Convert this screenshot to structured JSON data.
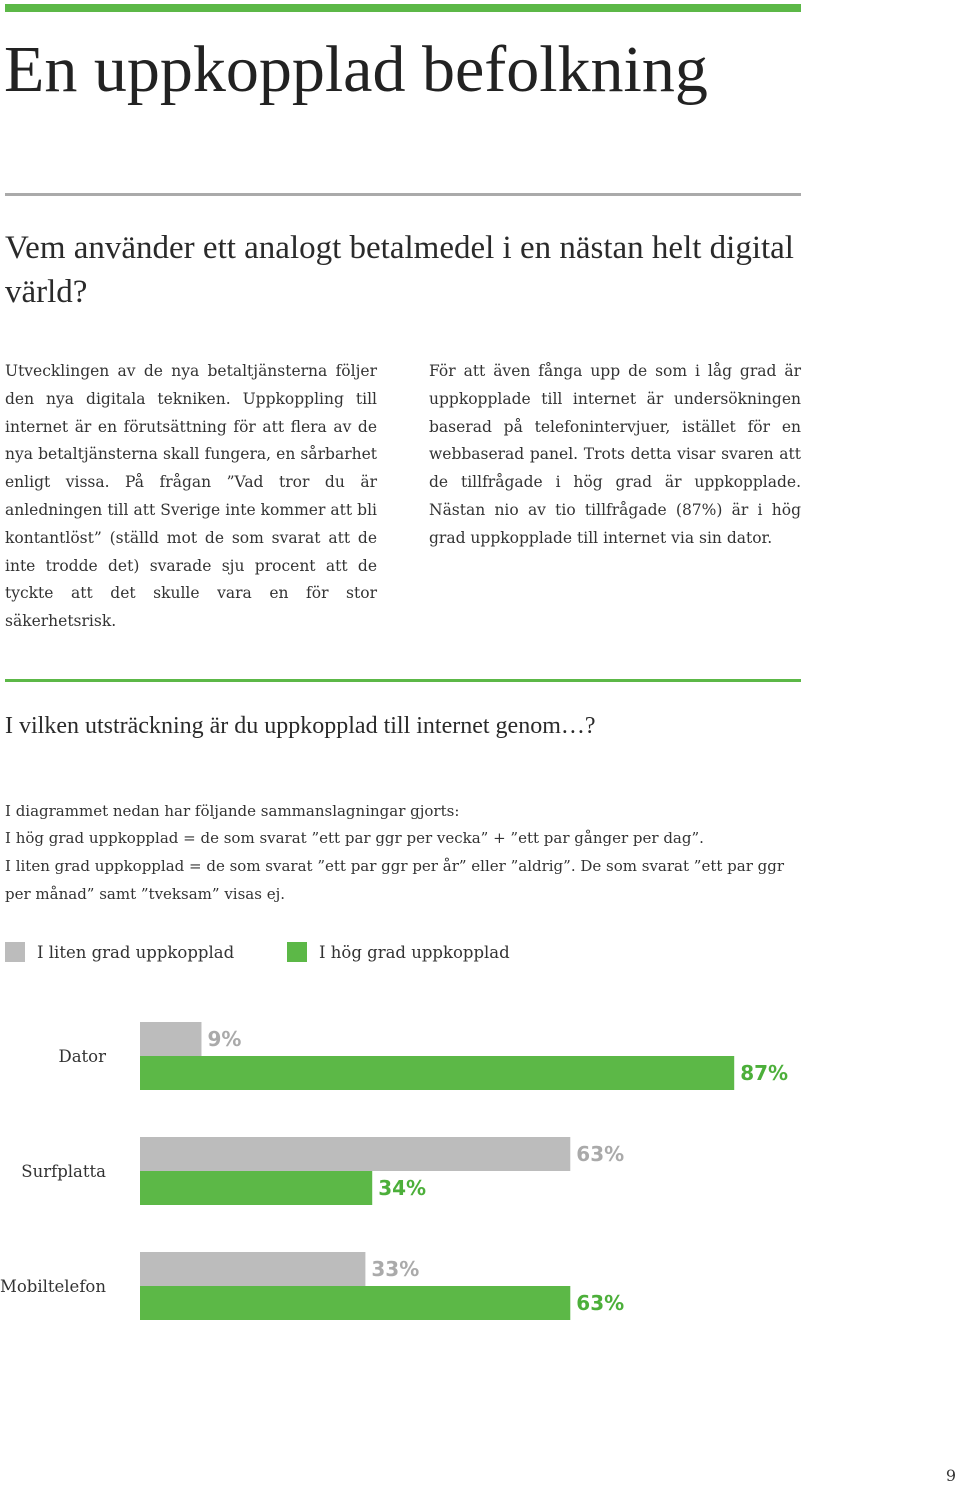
{
  "page": {
    "title": "En uppkopplad befolkning",
    "subtitle": "Vem använder ett analogt betalmedel i en nästan helt digital värld?",
    "body_left": "Utvecklingen av de nya betaltjänsterna följer den nya digitala tekniken. Uppkoppling till internet är en förutsättning för att flera av de nya betaltjänsterna skall fungera, en sårbarhet enligt vissa. På frågan ”Vad tror du är anledningen till att Sverige inte kommer att bli kontantlöst” (ställd mot de som svarat att de inte trodde det) svarade sju procent att de tyckte att det skulle vara en för stor säkerhetsrisk.",
    "body_right": "För att även fånga upp de som i låg grad är uppkopplade till internet är undersökningen baserad på telefonintervjuer, istället för en webbaserad panel. Trots detta visar svaren att de tillfrågade i hög grad är uppkopplade. Nästan nio av tio tillfrågade (87%) är i hög grad uppkopplade till internet via sin dator.",
    "question": "I vilken utsträckning är du uppkopplad till internet genom…?",
    "notes": [
      "I diagrammet nedan har följande sammanslagningar gjorts:",
      "I hög grad uppkopplad = de som svarat ”ett par ggr per vecka” + ”ett par gånger per dag”.",
      "I liten grad uppkopplad = de som svarat ”ett par ggr per år” eller ”aldrig”. De som svarat ”ett par ggr per månad” samt ”tveksam” visas ej."
    ],
    "page_number": "9",
    "colors": {
      "accent_green": "#5cb847",
      "grey": "#bcbcbc",
      "rule_grey": "#aaaaaa"
    }
  },
  "chart_data": {
    "type": "bar",
    "orientation": "horizontal",
    "categories": [
      "Dator",
      "Surfplatta",
      "Mobiltelefon"
    ],
    "series": [
      {
        "name": "I liten grad uppkopplad",
        "values": [
          9,
          63,
          33
        ],
        "color": "#bcbcbc",
        "label_color": "#aaaaaa"
      },
      {
        "name": "I hög grad uppkopplad",
        "values": [
          87,
          34,
          63
        ],
        "color": "#5cb847",
        "label_color": "#4caf3a"
      }
    ],
    "value_suffix": "%",
    "legend_position": "top-left",
    "grid": false,
    "xlim": [
      0,
      100
    ]
  }
}
